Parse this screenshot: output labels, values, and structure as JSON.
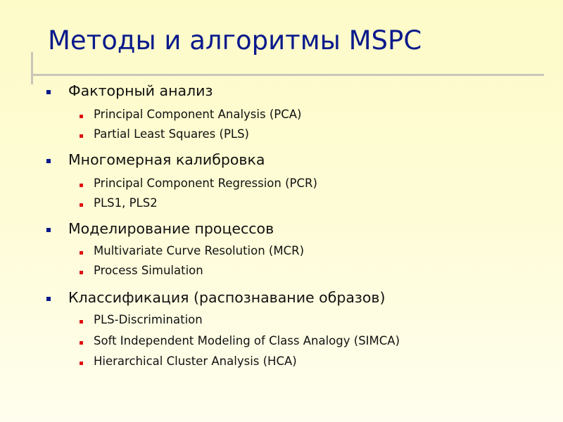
{
  "title": "Методы и алгоритмы MSPC",
  "colors": {
    "title": "#0a1a8c",
    "bullet_level1": "#0a1a8c",
    "bullet_level2": "#e01010",
    "divider": "#c8c6b8"
  },
  "sections": [
    {
      "label": "Факторный анализ",
      "items": [
        "Principal Component Analysis (PCA)",
        "Partial Least Squares (PLS)"
      ]
    },
    {
      "label": "Многомерная калибровка",
      "items": [
        "Principal Component Regression (PCR)",
        "PLS1, PLS2"
      ]
    },
    {
      "label": "Моделирование процессов",
      "items": [
        "Multivariate Curve Resolution (MCR)",
        "Process Simulation"
      ]
    },
    {
      "label": "Классификация (распознавание образов)",
      "items": [
        "PLS-Discrimination",
        "Soft Independent Modeling of Class Analogy (SIMCA)",
        "Hierarchical Cluster Analysis (HCA)"
      ]
    }
  ]
}
